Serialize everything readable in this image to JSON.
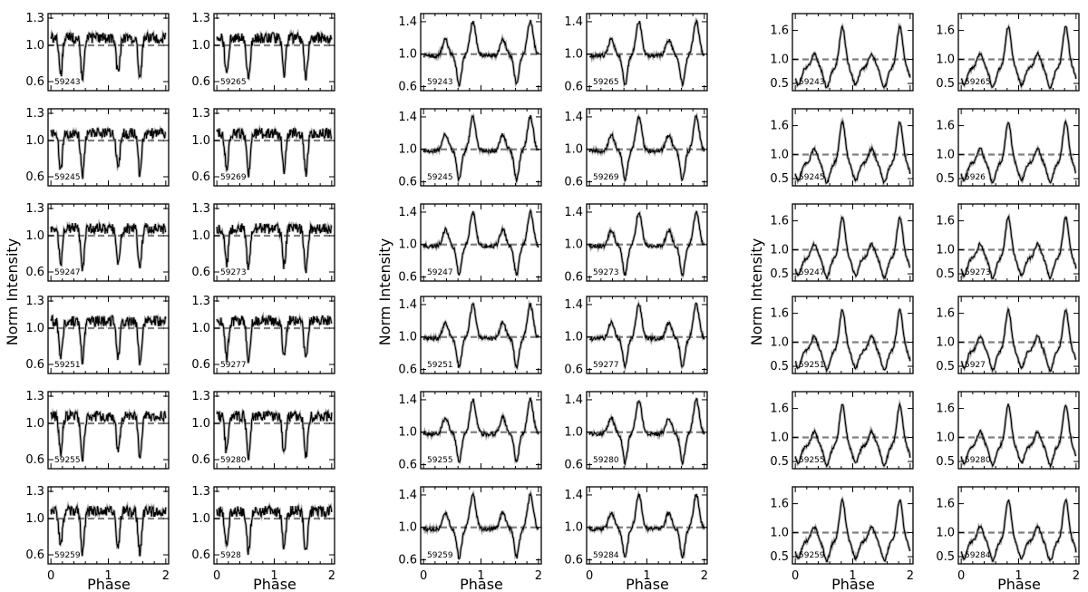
{
  "figure": {
    "ylabel": "Norm Intensity",
    "xlabel": "Phase"
  },
  "chart_data": [
    {
      "type": "line",
      "group": 1,
      "xlabel": "Phase",
      "ylabel": "Norm Intensity",
      "xlim": [
        -0.05,
        2.05
      ],
      "ylim": [
        0.5,
        1.35
      ],
      "yticks": [
        "0.6",
        "1.0",
        "1.3"
      ],
      "xticks": [
        "0",
        "1",
        "2"
      ],
      "reference_line": 1.0,
      "panel_labels": [
        [
          "59243",
          "59265"
        ],
        [
          "59245",
          "59269"
        ],
        [
          "59247",
          "59273"
        ],
        [
          "59251",
          "59277"
        ],
        [
          "59255",
          "59280"
        ],
        [
          "59259",
          "5928"
        ]
      ],
      "profile": {
        "dip_phases": [
          0.17,
          0.55
        ],
        "dip_depths": [
          0.4,
          0.45
        ],
        "dip_width": 0.03,
        "peak_phases": [],
        "peak_heights": [],
        "peak_width": 0.05,
        "baseline": 1.08,
        "noise": 0.06
      }
    },
    {
      "type": "line",
      "group": 2,
      "xlabel": "Phase",
      "ylabel": "Norm Intensity",
      "xlim": [
        -0.05,
        2.05
      ],
      "ylim": [
        0.55,
        1.5
      ],
      "yticks": [
        "0.6",
        "1.0",
        "1.4"
      ],
      "xticks": [
        "0",
        "1",
        "2"
      ],
      "reference_line": 1.0,
      "panel_labels": [
        [
          "59243",
          "59265"
        ],
        [
          "59245",
          "59269"
        ],
        [
          "59247",
          "59273"
        ],
        [
          "59251",
          "59277"
        ],
        [
          "59255",
          "59280"
        ],
        [
          "59259",
          "59284"
        ]
      ],
      "profile": {
        "dip_phases": [
          0.62
        ],
        "dip_depths": [
          0.35
        ],
        "dip_width": 0.04,
        "peak_phases": [
          0.38,
          0.86
        ],
        "peak_heights": [
          0.2,
          0.42
        ],
        "peak_width": 0.05,
        "baseline": 0.98,
        "noise": 0.025
      }
    },
    {
      "type": "line",
      "group": 3,
      "xlabel": "Phase",
      "ylabel": "Norm Intensity",
      "xlim": [
        -0.05,
        2.05
      ],
      "ylim": [
        0.35,
        1.95
      ],
      "yticks": [
        "0.5",
        "1.0",
        "1.6"
      ],
      "xticks": [
        "0",
        "1",
        "2"
      ],
      "reference_line": 1.0,
      "panel_labels": [
        [
          "59243",
          "59265"
        ],
        [
          "59245",
          "5926"
        ],
        [
          "59247",
          "59273"
        ],
        [
          "59251",
          "5927"
        ],
        [
          "59255",
          "59280"
        ],
        [
          "59259",
          "59284"
        ]
      ],
      "profile": {
        "dip_phases": [
          0.05,
          0.55
        ],
        "dip_depths": [
          0.35,
          0.4
        ],
        "dip_width": 0.05,
        "peak_phases": [
          0.33,
          0.82
        ],
        "peak_heights": [
          0.3,
          0.85
        ],
        "peak_width": 0.05,
        "baseline": 0.82,
        "noise": 0.03
      }
    }
  ]
}
